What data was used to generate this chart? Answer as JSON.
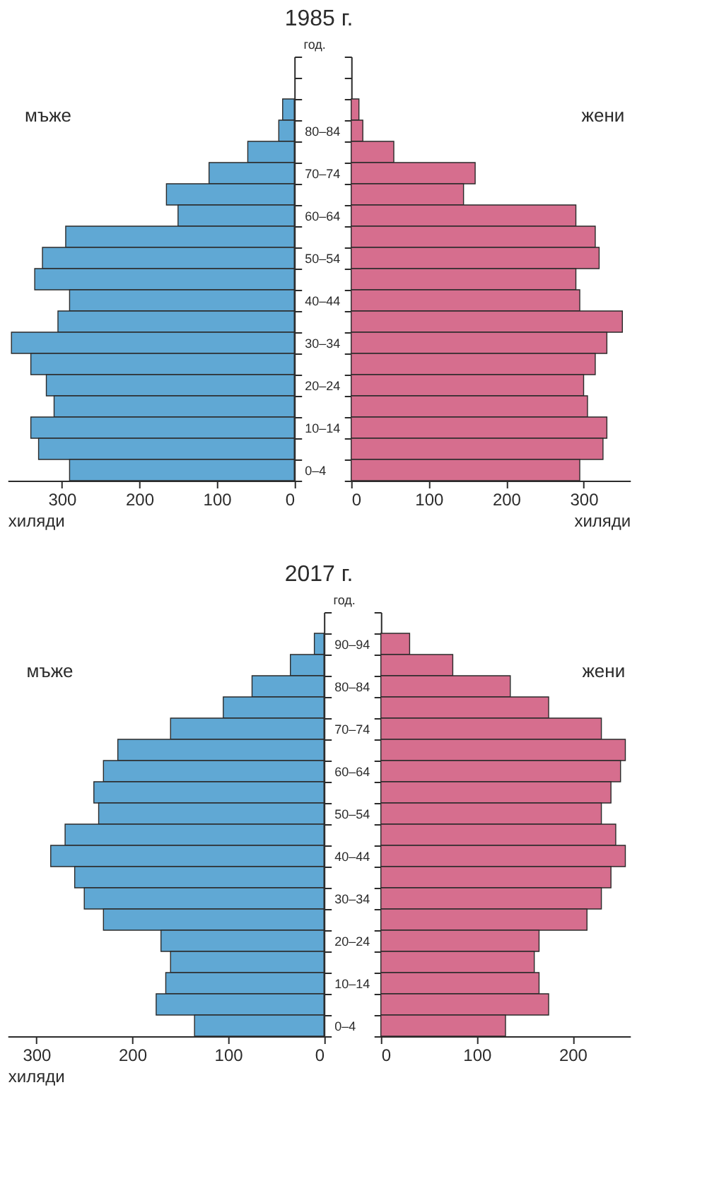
{
  "chart_data": [
    {
      "type": "bar",
      "orientation": "horizontal",
      "title": "1985 г.",
      "ylabel": "год.",
      "xlabel": "хиляди",
      "categories": [
        null,
        null,
        null,
        "80–84",
        null,
        "70–74",
        null,
        "60–64",
        null,
        "50–54",
        null,
        "40–44",
        null,
        "30–34",
        null,
        "20–24",
        null,
        "10–14",
        null,
        "0–4"
      ],
      "series": [
        {
          "name": "мъже",
          "color": "#60a8d4",
          "values": [
            null,
            null,
            15,
            20,
            60,
            110,
            165,
            150,
            295,
            325,
            335,
            290,
            305,
            365,
            340,
            320,
            310,
            340,
            330,
            290
          ]
        }
      ],
      "xlim": [
        370,
        0
      ],
      "xticks": [
        300,
        200,
        100,
        0
      ]
    },
    {
      "type": "bar",
      "orientation": "horizontal",
      "xlabel": "хиляди",
      "categories": [
        null,
        null,
        null,
        "80–84",
        null,
        "70–74",
        null,
        "60–64",
        null,
        "50–54",
        null,
        "40–44",
        null,
        "30–34",
        null,
        "20–24",
        null,
        "10–14",
        null,
        "0–4"
      ],
      "series": [
        {
          "name": "жени",
          "color": "#d66e8e",
          "values": [
            null,
            null,
            10,
            15,
            55,
            160,
            145,
            290,
            315,
            320,
            290,
            295,
            350,
            330,
            315,
            300,
            305,
            330,
            325,
            295
          ]
        }
      ],
      "xlim": [
        0,
        360
      ],
      "xticks": [
        0,
        100,
        200,
        300
      ],
      "tick_labels": "x"
    },
    {
      "type": "bar",
      "orientation": "horizontal",
      "title": "2017 г.",
      "ylabel": "год.",
      "xlabel": "хиляди",
      "categories": [
        null,
        "90–94",
        null,
        "80–84",
        null,
        "70–74",
        null,
        "60–64",
        null,
        "50–54",
        null,
        "40–44",
        null,
        "30–34",
        null,
        "20–24",
        null,
        "10–14",
        null,
        "0–4"
      ],
      "series": [
        {
          "name": "мъже",
          "color": "#60a8d4",
          "values": [
            null,
            10,
            35,
            75,
            105,
            160,
            215,
            230,
            240,
            235,
            270,
            285,
            260,
            250,
            230,
            170,
            160,
            165,
            175,
            135
          ]
        }
      ],
      "xlim": [
        330,
        0
      ],
      "xticks": [
        300,
        200,
        100,
        0
      ]
    },
    {
      "type": "bar",
      "orientation": "horizontal",
      "categories": [
        null,
        "90–94",
        null,
        "80–84",
        null,
        "70–74",
        null,
        "60–64",
        null,
        "50–54",
        null,
        "40–44",
        null,
        "30–34",
        null,
        "20–24",
        null,
        "10–14",
        null,
        "0–4"
      ],
      "series": [
        {
          "name": "жени",
          "color": "#d66e8e",
          "values": [
            null,
            30,
            75,
            135,
            175,
            230,
            255,
            250,
            240,
            230,
            245,
            255,
            240,
            230,
            215,
            165,
            160,
            165,
            175,
            130
          ]
        }
      ],
      "xlim": [
        0,
        260
      ],
      "xticks": [
        0,
        100,
        200
      ],
      "tick_labels": "x"
    }
  ]
}
